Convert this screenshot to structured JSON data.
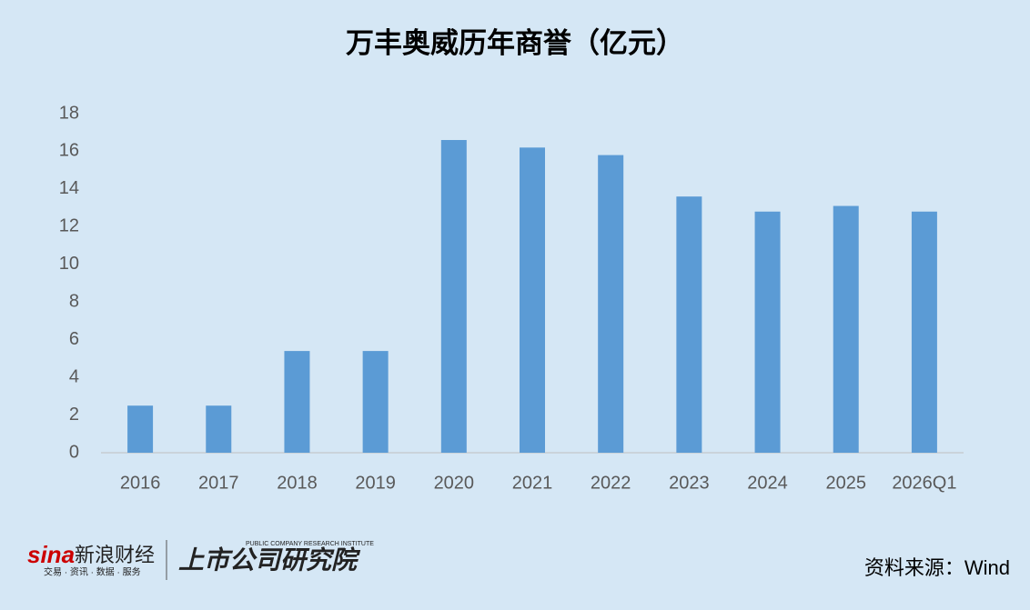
{
  "chart_data": {
    "type": "bar",
    "title": "万丰奥威历年商誉（亿元）",
    "categories": [
      "2016",
      "2017",
      "2018",
      "2019",
      "2020",
      "2021",
      "2022",
      "2023",
      "2024",
      "2025",
      "2026Q1"
    ],
    "values": [
      2.5,
      2.5,
      5.4,
      5.4,
      16.6,
      16.2,
      15.8,
      13.6,
      12.8,
      13.1,
      12.8
    ],
    "color": "#5b9bd5",
    "ylim": [
      0,
      18
    ],
    "yticks": [
      0,
      2,
      4,
      6,
      8,
      10,
      12,
      14,
      16,
      18
    ],
    "grid": false,
    "source": "资料来源：Wind",
    "logos": [
      "sina",
      "新浪财经",
      "交易 · 资讯 · 数据 · 服务",
      "上市公司研究院",
      "PUBLIC COMPANY RESEARCH INSTITUTE"
    ]
  }
}
